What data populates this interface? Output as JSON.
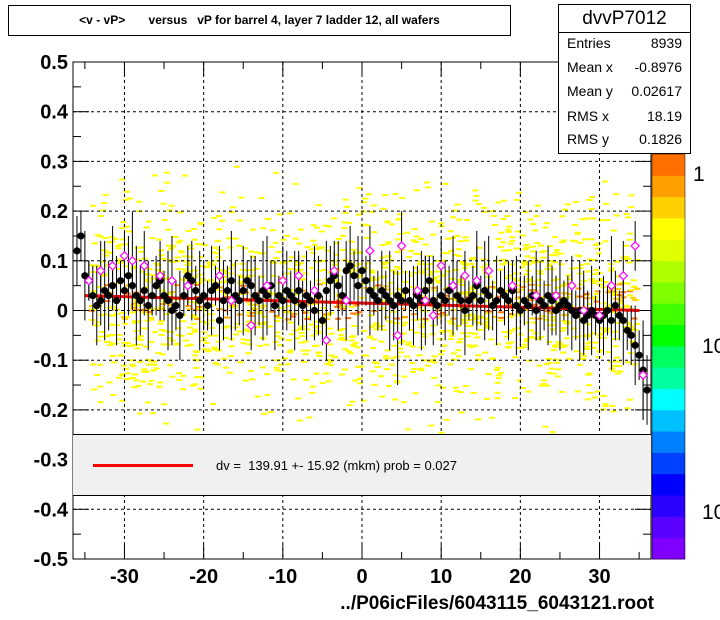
{
  "chart_data": {
    "type": "scatter",
    "title": "<v - vP>       versus   vP for barrel 4, layer 7 ladder 12, all wafers",
    "x_tick_labels": [
      "-30",
      "-20",
      "-10",
      "0",
      "10",
      "20",
      "30"
    ],
    "x_ticks": [
      -30,
      -20,
      -10,
      0,
      10,
      20,
      30
    ],
    "y_tick_labels": [
      "0.5",
      "0.4",
      "0.3",
      "0.2",
      "0.1",
      "0",
      "-0.1",
      "-0.2",
      "-0.3",
      "-0.4",
      "-0.5"
    ],
    "y_ticks": [
      0.5,
      0.4,
      0.3,
      0.2,
      0.1,
      0,
      -0.1,
      -0.2,
      -0.3,
      -0.4,
      -0.5
    ],
    "xlim": [
      -36.5,
      36.5
    ],
    "ylim": [
      -0.5,
      0.5
    ],
    "grid": true,
    "stats": {
      "name": "dvvP7012",
      "rows": [
        {
          "label": "Entries",
          "value": "8939"
        },
        {
          "label": "Mean x",
          "value": "-0.8976"
        },
        {
          "label": "Mean y",
          "value": "0.02617"
        },
        {
          "label": "RMS x",
          "value": "18.19"
        },
        {
          "label": "RMS y",
          "value": "0.1826"
        }
      ]
    },
    "fit": {
      "label": "dv =  139.91 +- 15.92 (mkm) prob = 0.027",
      "color": "#ff0000",
      "x": [
        -35,
        35
      ],
      "y": [
        0.03,
        0.0
      ]
    },
    "z_scale_labels": [
      "1",
      "10",
      "10"
    ],
    "z_colors": [
      "#7f00ff",
      "#5a00ff",
      "#2a00ff",
      "#0000ff",
      "#0040ff",
      "#0080ff",
      "#00c0ff",
      "#00ffff",
      "#00ffa0",
      "#00ff60",
      "#00ff00",
      "#40ff00",
      "#80ff00",
      "#b0ff00",
      "#e0ff00",
      "#ffff00",
      "#ffd000",
      "#ffa000",
      "#ff7000"
    ],
    "series": [
      {
        "marker": "filled-circle",
        "color": "#000000",
        "points": [
          [
            -36,
            0.12
          ],
          [
            -35.5,
            0.15
          ],
          [
            -35,
            0.07
          ],
          [
            -34.5,
            0.06
          ],
          [
            -34,
            0.03
          ],
          [
            -33.5,
            0.01
          ],
          [
            -33,
            0.02
          ],
          [
            -32.5,
            0.04
          ],
          [
            -32,
            0.03
          ],
          [
            -31.5,
            0.05
          ],
          [
            -31,
            0.02
          ],
          [
            -30.5,
            0.06
          ],
          [
            -30,
            0.04
          ],
          [
            -29.5,
            0.07
          ],
          [
            -29,
            0.05
          ],
          [
            -28.5,
            0.03
          ],
          [
            -28,
            0.02
          ],
          [
            -27.5,
            0.04
          ],
          [
            -27,
            0.01
          ],
          [
            -26.5,
            0.03
          ],
          [
            -26,
            0.05
          ],
          [
            -25.5,
            0.06
          ],
          [
            -25,
            0.03
          ],
          [
            -24.5,
            0.02
          ],
          [
            -24,
            0.0
          ],
          [
            -23.5,
            0.01
          ],
          [
            -23,
            -0.01
          ],
          [
            -22.5,
            0.03
          ],
          [
            -22,
            0.07
          ],
          [
            -21.5,
            0.06
          ],
          [
            -21,
            0.04
          ],
          [
            -20.5,
            0.02
          ],
          [
            -20,
            0.03
          ],
          [
            -19.5,
            0.01
          ],
          [
            -19,
            0.04
          ],
          [
            -18.5,
            0.05
          ],
          [
            -18,
            -0.02
          ],
          [
            -17.5,
            0.02
          ],
          [
            -17,
            0.04
          ],
          [
            -16.5,
            0.06
          ],
          [
            -16,
            0.03
          ],
          [
            -15.5,
            0.02
          ],
          [
            -15,
            0.04
          ],
          [
            -14.5,
            0.06
          ],
          [
            -14,
            0.05
          ],
          [
            -13.5,
            0.03
          ],
          [
            -13,
            0.02
          ],
          [
            -12.5,
            0.04
          ],
          [
            -12,
            0.03
          ],
          [
            -11.5,
            0.05
          ],
          [
            -11,
            0.01
          ],
          [
            -10.5,
            0.03
          ],
          [
            -10,
            0.02
          ],
          [
            -9.5,
            0.04
          ],
          [
            -9,
            0.03
          ],
          [
            -8.5,
            0.02
          ],
          [
            -8,
            0.04
          ],
          [
            -7.5,
            0.01
          ],
          [
            -7,
            0.03
          ],
          [
            -6.5,
            0.02
          ],
          [
            -6,
            0.0
          ],
          [
            -5.5,
            0.03
          ],
          [
            -5,
            -0.02
          ],
          [
            -4.5,
            0.04
          ],
          [
            -4,
            0.06
          ],
          [
            -3.5,
            0.07
          ],
          [
            -3,
            0.05
          ],
          [
            -2.5,
            0.03
          ],
          [
            -2,
            0.08
          ],
          [
            -1.5,
            0.09
          ],
          [
            -1,
            0.07
          ],
          [
            -0.5,
            0.05
          ],
          [
            0,
            0.08
          ],
          [
            0.5,
            0.06
          ],
          [
            1,
            0.04
          ],
          [
            1.5,
            0.03
          ],
          [
            2,
            0.02
          ],
          [
            2.5,
            0.04
          ],
          [
            3,
            0.03
          ],
          [
            3.5,
            0.02
          ],
          [
            4,
            0.01
          ],
          [
            4.5,
            0.03
          ],
          [
            5,
            0.02
          ],
          [
            5.5,
            0.04
          ],
          [
            6,
            0.02
          ],
          [
            6.5,
            0.01
          ],
          [
            7,
            0.03
          ],
          [
            7.5,
            0.02
          ],
          [
            8,
            0.04
          ],
          [
            8.5,
            0.06
          ],
          [
            9,
            0.02
          ],
          [
            9.5,
            0.01
          ],
          [
            10,
            0.03
          ],
          [
            10.5,
            0.02
          ],
          [
            11,
            0.04
          ],
          [
            11.5,
            0.05
          ],
          [
            12,
            0.03
          ],
          [
            12.5,
            0.02
          ],
          [
            13,
            0.0
          ],
          [
            13.5,
            0.02
          ],
          [
            14,
            0.03
          ],
          [
            14.5,
            0.05
          ],
          [
            15,
            0.02
          ],
          [
            15.5,
            0.04
          ],
          [
            16,
            0.03
          ],
          [
            16.5,
            0.01
          ],
          [
            17,
            0.02
          ],
          [
            17.5,
            0.04
          ],
          [
            18,
            0.03
          ],
          [
            18.5,
            0.02
          ],
          [
            19,
            0.04
          ],
          [
            19.5,
            0.01
          ],
          [
            20,
            0.0
          ],
          [
            20.5,
            0.02
          ],
          [
            21,
            0.01
          ],
          [
            21.5,
            0.03
          ],
          [
            22,
            0.0
          ],
          [
            22.5,
            0.02
          ],
          [
            23,
            0.01
          ],
          [
            23.5,
            0.03
          ],
          [
            24,
            0.02
          ],
          [
            24.5,
            0.0
          ],
          [
            25,
            0.01
          ],
          [
            25.5,
            0.02
          ],
          [
            26,
            0.01
          ],
          [
            26.5,
            0.0
          ],
          [
            27,
            -0.01
          ],
          [
            27.5,
            0.0
          ],
          [
            28,
            -0.02
          ],
          [
            28.5,
            -0.01
          ],
          [
            29,
            0.0
          ],
          [
            29.5,
            -0.01
          ],
          [
            30,
            -0.02
          ],
          [
            30.5,
            -0.01
          ],
          [
            31,
            0.0
          ],
          [
            31.5,
            -0.02
          ],
          [
            32,
            0.01
          ],
          [
            32.5,
            -0.01
          ],
          [
            33,
            -0.02
          ],
          [
            33.5,
            -0.04
          ],
          [
            34,
            -0.05
          ],
          [
            34.5,
            -0.07
          ],
          [
            35,
            -0.09
          ],
          [
            35.5,
            -0.12
          ],
          [
            36,
            -0.16
          ]
        ]
      },
      {
        "marker": "open-diamond",
        "color": "#ff00ff",
        "points": [
          [
            -34.5,
            0.06
          ],
          [
            -33,
            0.08
          ],
          [
            -31.5,
            0.09
          ],
          [
            -30,
            0.11
          ],
          [
            -29,
            0.1
          ],
          [
            -27.5,
            0.09
          ],
          [
            -25.5,
            0.07
          ],
          [
            -24,
            0.06
          ],
          [
            -22,
            0.05
          ],
          [
            -18,
            0.07
          ],
          [
            -16.5,
            0.02
          ],
          [
            -14,
            -0.03
          ],
          [
            -12,
            0.05
          ],
          [
            -10,
            0.06
          ],
          [
            -8,
            0.07
          ],
          [
            -6,
            0.04
          ],
          [
            -4.5,
            -0.06
          ],
          [
            -3.5,
            0.08
          ],
          [
            -2,
            0.02
          ],
          [
            1,
            0.12
          ],
          [
            4.5,
            -0.05
          ],
          [
            5,
            0.13
          ],
          [
            7,
            0.04
          ],
          [
            8,
            0.02
          ],
          [
            9,
            -0.01
          ],
          [
            10,
            0.09
          ],
          [
            11.5,
            0.05
          ],
          [
            13,
            0.07
          ],
          [
            14.5,
            0.06
          ],
          [
            16,
            0.08
          ],
          [
            19,
            0.05
          ],
          [
            22,
            0.03
          ],
          [
            24.5,
            0.03
          ],
          [
            26.5,
            0.05
          ],
          [
            28,
            0.0
          ],
          [
            30,
            -0.01
          ],
          [
            31.5,
            0.05
          ],
          [
            33,
            0.07
          ],
          [
            34.5,
            0.13
          ],
          [
            35.5,
            -0.13
          ]
        ]
      }
    ]
  },
  "footer": "../P06icFiles/6043115_6043121.root"
}
